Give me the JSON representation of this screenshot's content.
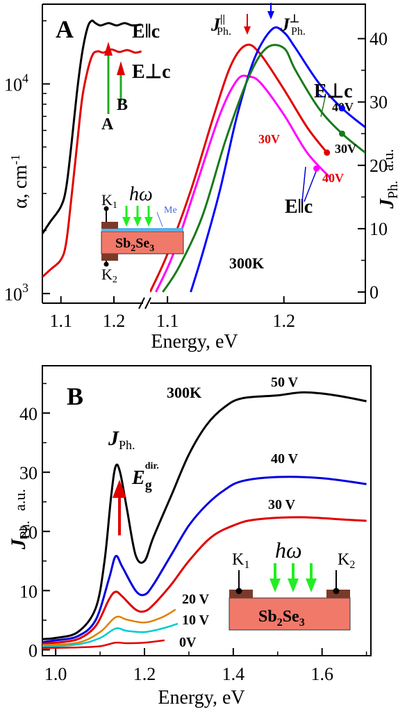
{
  "chart_data": [
    {
      "panel": "A",
      "type": "line",
      "panel_label": "A",
      "left_axis": {
        "ylabel": "α, cm",
        "ylabel_sup": "-1",
        "scale": "log",
        "ticks": [
          {
            "label": "10",
            "sup": "4",
            "value": 10000
          },
          {
            "label": "10",
            "sup": "3",
            "value": 1000
          }
        ],
        "xticks": [
          {
            "label": "1.1",
            "value": 1.1
          },
          {
            "label": "1.2",
            "value": 1.2
          }
        ],
        "xrange": [
          1.065,
          1.255
        ]
      },
      "right_axis": {
        "ylabel_main": "J",
        "ylabel_sub": "Ph.",
        "ylabel_unit": "a.u.",
        "ticks": [
          {
            "label": "0",
            "value": 0
          },
          {
            "label": "10",
            "value": 10
          },
          {
            "label": "20",
            "value": 20
          },
          {
            "label": "30",
            "value": 30
          },
          {
            "label": "40",
            "value": 40
          }
        ],
        "xticks": [
          {
            "label": "1.1",
            "value": 1.1
          },
          {
            "label": "1.2",
            "value": 1.2
          }
        ],
        "xrange": [
          1.085,
          1.27
        ],
        "yrange": [
          0,
          45
        ]
      },
      "xlabel": "Energy, eV",
      "absorption_series": [
        {
          "name": "E‖c",
          "color": "#000000",
          "points": [
            [
              1.065,
              1930
            ],
            [
              1.08,
              2200
            ],
            [
              1.1,
              2600
            ],
            [
              1.11,
              3200
            ],
            [
              1.12,
              5200
            ],
            [
              1.13,
              9000
            ],
            [
              1.14,
              14000
            ],
            [
              1.15,
              18500
            ],
            [
              1.158,
              20000
            ],
            [
              1.165,
              19500
            ],
            [
              1.175,
              19000
            ],
            [
              1.19,
              19500
            ],
            [
              1.205,
              19000
            ],
            [
              1.22,
              19500
            ],
            [
              1.235,
              19000
            ],
            [
              1.252,
              19200
            ]
          ]
        },
        {
          "name": "E⊥c",
          "color": "#e00000",
          "points": [
            [
              1.065,
              1200
            ],
            [
              1.08,
              1300
            ],
            [
              1.1,
              1450
            ],
            [
              1.11,
              1750
            ],
            [
              1.12,
              2900
            ],
            [
              1.13,
              5000
            ],
            [
              1.14,
              8500
            ],
            [
              1.15,
              11500
            ],
            [
              1.16,
              13800
            ],
            [
              1.17,
              14300
            ],
            [
              1.18,
              14100
            ],
            [
              1.195,
              14600
            ],
            [
              1.21,
              14200
            ],
            [
              1.225,
              14500
            ],
            [
              1.24,
              14100
            ],
            [
              1.252,
              14300
            ]
          ]
        }
      ],
      "photocurrent_series": [
        {
          "name": "J∥ 40V",
          "color": "#e00000",
          "points": [
            [
              1.085,
              0
            ],
            [
              1.1,
              6
            ],
            [
              1.12,
              16
            ],
            [
              1.14,
              28
            ],
            [
              1.155,
              36
            ],
            [
              1.168,
              39
            ],
            [
              1.18,
              37.5
            ],
            [
              1.2,
              32
            ],
            [
              1.22,
              26
            ],
            [
              1.237,
              22
            ]
          ]
        },
        {
          "name": "J∥ 30V",
          "color": "#ff00ff",
          "points": [
            [
              1.09,
              0
            ],
            [
              1.105,
              6
            ],
            [
              1.125,
              17
            ],
            [
              1.145,
              28
            ],
            [
              1.16,
              33.5
            ],
            [
              1.17,
              34
            ],
            [
              1.18,
              33
            ],
            [
              1.2,
              28
            ],
            [
              1.22,
              22
            ],
            [
              1.24,
              18
            ]
          ]
        },
        {
          "name": "J⊥ 40V",
          "color": "#0000ff",
          "points": [
            [
              1.12,
              0
            ],
            [
              1.13,
              6
            ],
            [
              1.145,
              16
            ],
            [
              1.16,
              28
            ],
            [
              1.175,
              37
            ],
            [
              1.19,
              41.5
            ],
            [
              1.2,
              41
            ],
            [
              1.21,
              38.5
            ],
            [
              1.23,
              33
            ],
            [
              1.25,
              29
            ],
            [
              1.27,
              26
            ]
          ]
        },
        {
          "name": "J⊥ 30V",
          "color": "#1a7a1a",
          "points": [
            [
              1.096,
              0
            ],
            [
              1.11,
              4
            ],
            [
              1.13,
              12
            ],
            [
              1.15,
              24
            ],
            [
              1.17,
              34
            ],
            [
              1.185,
              38.5
            ],
            [
              1.2,
              38.5
            ],
            [
              1.21,
              35
            ],
            [
              1.23,
              29
            ],
            [
              1.25,
              25
            ],
            [
              1.27,
              22
            ]
          ]
        }
      ],
      "annotations": {
        "e_par_c": "E‖c",
        "e_perp_c": "E⊥c",
        "peak_A": "A",
        "peak_B": "B",
        "j_par_label": "J",
        "j_par_sup": "||",
        "j_par_sub": "Ph.",
        "j_perp_label": "J",
        "j_perp_sup": "⊥",
        "j_perp_sub": "Ph.",
        "e_perp_c_right": "E⊥c",
        "e_par_c_right": "E‖c",
        "v40_blue": "40V",
        "v30_green": "30V",
        "v30_red": "30V",
        "v40_red": "40V",
        "temperature": "300K"
      },
      "inset": {
        "k1": "K",
        "k1_sub": "1",
        "k2": "K",
        "k2_sub": "2",
        "hw": "hω",
        "me": "Me",
        "material_a": "Sb",
        "material_sub1": "2",
        "material_b": "Se",
        "material_sub2": "3"
      }
    },
    {
      "panel": "B",
      "type": "line",
      "panel_label": "B",
      "xlabel": "Energy, eV",
      "ylabel_main": "J",
      "ylabel_sub": "Ph.",
      "ylabel_unit": "a.u.",
      "xrange": [
        0.97,
        1.71
      ],
      "yrange": [
        -1,
        48
      ],
      "xticks": [
        {
          "label": "1.0",
          "value": 1.0
        },
        {
          "label": "1.2",
          "value": 1.2
        },
        {
          "label": "1.4",
          "value": 1.4
        },
        {
          "label": "1.6",
          "value": 1.6
        }
      ],
      "yticks": [
        {
          "label": "0",
          "value": 0
        },
        {
          "label": "10",
          "value": 10
        },
        {
          "label": "20",
          "value": 20
        },
        {
          "label": "30",
          "value": 30
        },
        {
          "label": "40",
          "value": 40
        }
      ],
      "series": [
        {
          "name": "50 V",
          "color": "#000000",
          "points": [
            [
              0.97,
              1.8
            ],
            [
              1.0,
              2
            ],
            [
              1.05,
              3
            ],
            [
              1.09,
              7
            ],
            [
              1.11,
              15
            ],
            [
              1.125,
              26
            ],
            [
              1.135,
              31
            ],
            [
              1.145,
              30
            ],
            [
              1.16,
              24
            ],
            [
              1.18,
              16
            ],
            [
              1.2,
              15
            ],
            [
              1.22,
              19
            ],
            [
              1.26,
              26
            ],
            [
              1.3,
              33
            ],
            [
              1.34,
              38
            ],
            [
              1.38,
              41
            ],
            [
              1.42,
              42.5
            ],
            [
              1.5,
              43
            ],
            [
              1.56,
              43.5
            ],
            [
              1.63,
              43
            ],
            [
              1.7,
              42
            ]
          ]
        },
        {
          "name": "40 V",
          "color": "#0000dd",
          "points": [
            [
              0.97,
              1.3
            ],
            [
              1.0,
              1.6
            ],
            [
              1.05,
              2.3
            ],
            [
              1.09,
              5
            ],
            [
              1.12,
              12
            ],
            [
              1.135,
              15.8
            ],
            [
              1.15,
              14
            ],
            [
              1.18,
              10
            ],
            [
              1.2,
              9.3
            ],
            [
              1.22,
              11
            ],
            [
              1.26,
              16
            ],
            [
              1.3,
              21
            ],
            [
              1.34,
              24.5
            ],
            [
              1.38,
              27
            ],
            [
              1.42,
              28.5
            ],
            [
              1.5,
              29.2
            ],
            [
              1.6,
              29
            ],
            [
              1.7,
              28
            ]
          ]
        },
        {
          "name": "30 V",
          "color": "#e00000",
          "points": [
            [
              0.97,
              1
            ],
            [
              1.0,
              1.2
            ],
            [
              1.05,
              1.8
            ],
            [
              1.09,
              4
            ],
            [
              1.12,
              8.5
            ],
            [
              1.135,
              9.8
            ],
            [
              1.15,
              9
            ],
            [
              1.18,
              6.8
            ],
            [
              1.2,
              6.5
            ],
            [
              1.22,
              7.6
            ],
            [
              1.26,
              11
            ],
            [
              1.3,
              15
            ],
            [
              1.35,
              19
            ],
            [
              1.4,
              21
            ],
            [
              1.45,
              22
            ],
            [
              1.55,
              22.4
            ],
            [
              1.65,
              22
            ],
            [
              1.7,
              21.8
            ]
          ]
        },
        {
          "name": "20 V",
          "color": "#e08000",
          "points": [
            [
              0.97,
              0.8
            ],
            [
              1.05,
              1.2
            ],
            [
              1.1,
              3
            ],
            [
              1.135,
              5.5
            ],
            [
              1.16,
              5.1
            ],
            [
              1.2,
              4.6
            ],
            [
              1.24,
              5.5
            ],
            [
              1.27,
              6.8
            ]
          ]
        },
        {
          "name": "10 V",
          "color": "#00cccc",
          "points": [
            [
              0.97,
              0.5
            ],
            [
              1.05,
              0.9
            ],
            [
              1.1,
              2
            ],
            [
              1.135,
              3.6
            ],
            [
              1.16,
              3.2
            ],
            [
              1.2,
              3
            ],
            [
              1.24,
              3.6
            ],
            [
              1.275,
              4.4
            ]
          ]
        },
        {
          "name": "0V",
          "color": "#e00000",
          "points": [
            [
              0.97,
              0.3
            ],
            [
              1.05,
              0.4
            ],
            [
              1.1,
              0.6
            ],
            [
              1.135,
              1.2
            ],
            [
              1.16,
              1.1
            ],
            [
              1.2,
              1.2
            ],
            [
              1.245,
              1.6
            ]
          ]
        }
      ],
      "series_labels": [
        "50 V",
        "40 V",
        "30 V",
        "20 V",
        "10 V",
        "0V"
      ],
      "annotations": {
        "j_label": "J",
        "j_sub": "Ph.",
        "eg_label": "E",
        "eg_sub": "g",
        "eg_sup": "dir.",
        "temperature": "300K"
      },
      "inset": {
        "k1": "K",
        "k1_sub": "1",
        "k2": "K",
        "k2_sub": "2",
        "hw": "hω",
        "material_a": "Sb",
        "material_sub1": "2",
        "material_b": "Se",
        "material_sub2": "3"
      }
    }
  ]
}
